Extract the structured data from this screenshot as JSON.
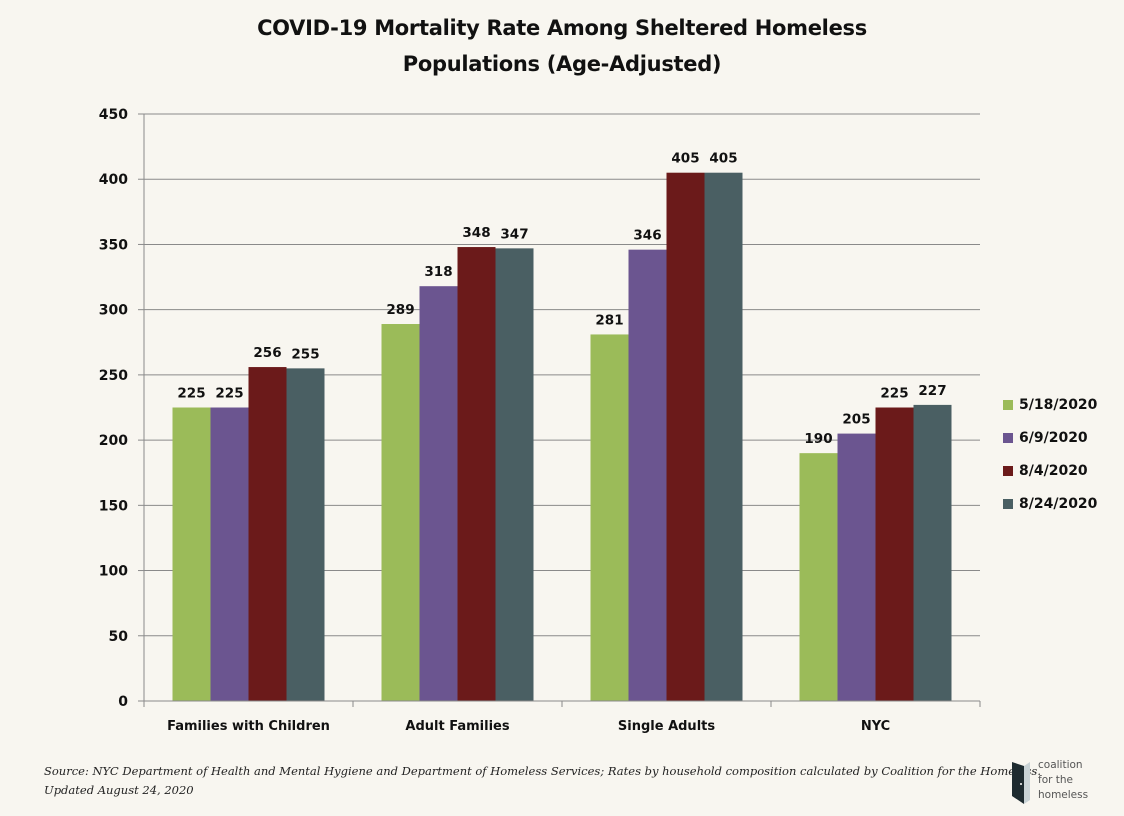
{
  "chart_data": {
    "type": "bar",
    "title": "COVID-19 Mortality Rate Among Sheltered Homeless Populations (Age-Adjusted)",
    "title_lines": [
      "COVID-19 Mortality Rate Among Sheltered Homeless",
      "Populations (Age-Adjusted)"
    ],
    "xlabel": "",
    "ylabel": "",
    "ylim": [
      0,
      450
    ],
    "yticks": [
      0,
      50,
      100,
      150,
      200,
      250,
      300,
      350,
      400,
      450
    ],
    "grid": true,
    "legend_position": "right",
    "categories": [
      "Families with Children",
      "Adult Families",
      "Single Adults",
      "NYC"
    ],
    "series": [
      {
        "name": "5/18/2020",
        "color": "#9bbb59",
        "values": [
          225,
          289,
          281,
          190
        ]
      },
      {
        "name": "6/9/2020",
        "color": "#6b5590",
        "values": [
          225,
          318,
          346,
          205
        ]
      },
      {
        "name": "8/4/2020",
        "color": "#6b1a1a",
        "values": [
          256,
          348,
          405,
          225
        ]
      },
      {
        "name": "8/24/2020",
        "color": "#4a5f63",
        "values": [
          255,
          347,
          405,
          227
        ]
      }
    ]
  },
  "footer": {
    "source_line1": "Source: NYC Department of Health and Mental Hygiene and Department of Homeless Services; Rates by household composition calculated by Coalition for the Homeless.",
    "source_line2": "Updated August 24, 2020"
  },
  "logo": {
    "line1": "coalition",
    "line2": "for the",
    "line3": "homeless"
  }
}
